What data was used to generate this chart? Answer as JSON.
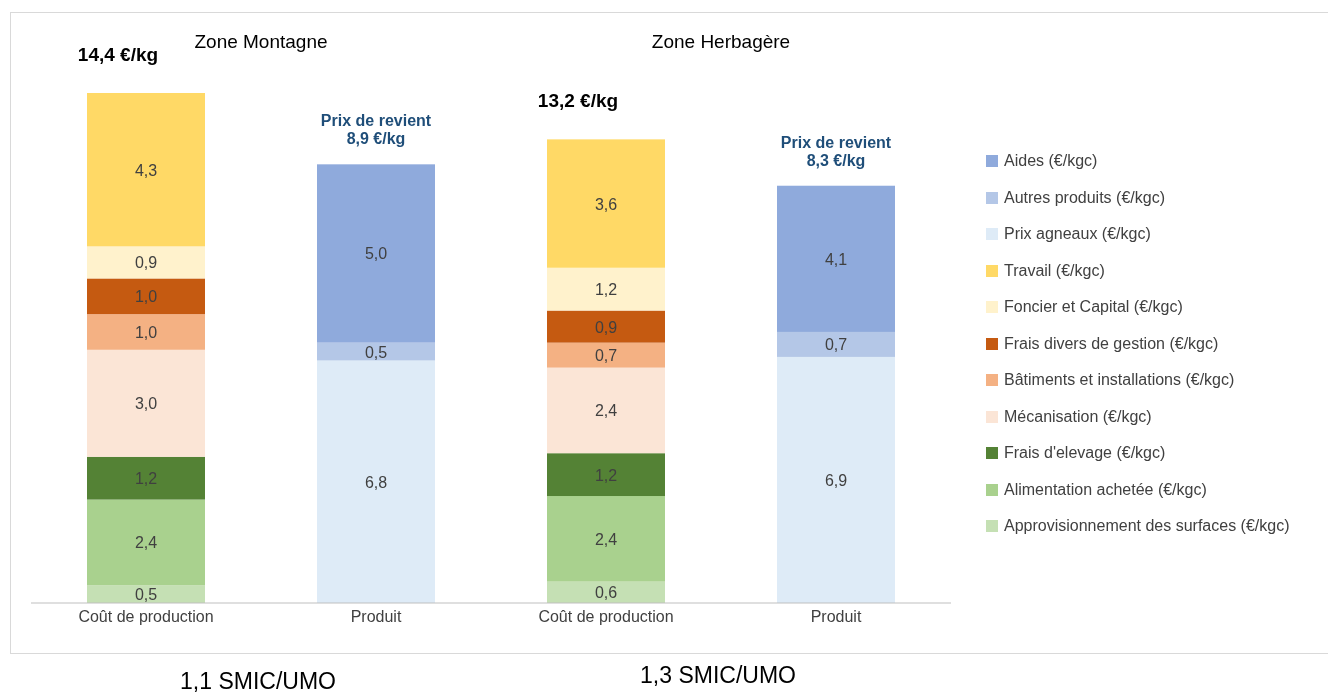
{
  "chart_data": {
    "type": "bar",
    "stacked": true,
    "legend": "right",
    "categories": [
      "Coût de production",
      "Produit",
      "Coût de production",
      "Produit"
    ],
    "series": [
      {
        "name": "Approvisionnement des surfaces (€/kgc)",
        "color": "#c5e0b4",
        "values": [
          0.5,
          null,
          0.6,
          null
        ],
        "value_labels": [
          "0,5",
          null,
          "0,6",
          null
        ]
      },
      {
        "name": "Alimentation achetée (€/kgc)",
        "color": "#a9d18e",
        "values": [
          2.4,
          null,
          2.4,
          null
        ],
        "value_labels": [
          "2,4",
          null,
          "2,4",
          null
        ]
      },
      {
        "name": "Frais d'elevage (€/kgc)",
        "color": "#548235",
        "values": [
          1.2,
          null,
          1.2,
          null
        ],
        "value_labels": [
          "1,2",
          null,
          "1,2",
          null
        ]
      },
      {
        "name": "Mécanisation (€/kgc)",
        "color": "#fbe5d6",
        "values": [
          3.0,
          null,
          2.4,
          null
        ],
        "value_labels": [
          "3,0",
          null,
          "2,4",
          null
        ]
      },
      {
        "name": "Bâtiments et installations (€/kgc)",
        "color": "#f4b183",
        "values": [
          1.0,
          null,
          0.7,
          null
        ],
        "value_labels": [
          "1,0",
          null,
          "0,7",
          null
        ]
      },
      {
        "name": "Frais divers de gestion (€/kgc)",
        "color": "#c55a11",
        "values": [
          1.0,
          null,
          0.9,
          null
        ],
        "value_labels": [
          "1,0",
          null,
          "0,9",
          null
        ]
      },
      {
        "name": "Foncier et Capital (€/kgc)",
        "color": "#fff2cc",
        "values": [
          0.9,
          null,
          1.2,
          null
        ],
        "value_labels": [
          "0,9",
          null,
          "1,2",
          null
        ]
      },
      {
        "name": "Travail (€/kgc)",
        "color": "#ffd966",
        "values": [
          4.3,
          null,
          3.6,
          null
        ],
        "value_labels": [
          "4,3",
          null,
          "3,6",
          null
        ]
      },
      {
        "name": "Prix agneaux (€/kgc)",
        "color": "#deebf7",
        "values": [
          null,
          6.8,
          null,
          6.9
        ],
        "value_labels": [
          null,
          "6,8",
          null,
          "6,9"
        ]
      },
      {
        "name": "Autres produits (€/kgc)",
        "color": "#b4c7e7",
        "values": [
          null,
          0.5,
          null,
          0.7
        ],
        "value_labels": [
          null,
          "0,5",
          null,
          "0,7"
        ]
      },
      {
        "name": "Aides (€/kgc)",
        "color": "#8faadc",
        "values": [
          null,
          5.0,
          null,
          4.1
        ],
        "value_labels": [
          null,
          "5,0",
          null,
          "4,1"
        ]
      }
    ],
    "totals": [
      "14,4 €/kg",
      "Prix de revient 8,9 €/kg",
      "13,2 €/kg",
      "Prix de revient 8,3 €/kg"
    ],
    "annotations": [
      "Zone Montagne",
      "Zone Herbagère",
      "1,1 SMIC/UMO",
      "1,3 SMIC/UMO"
    ]
  }
}
